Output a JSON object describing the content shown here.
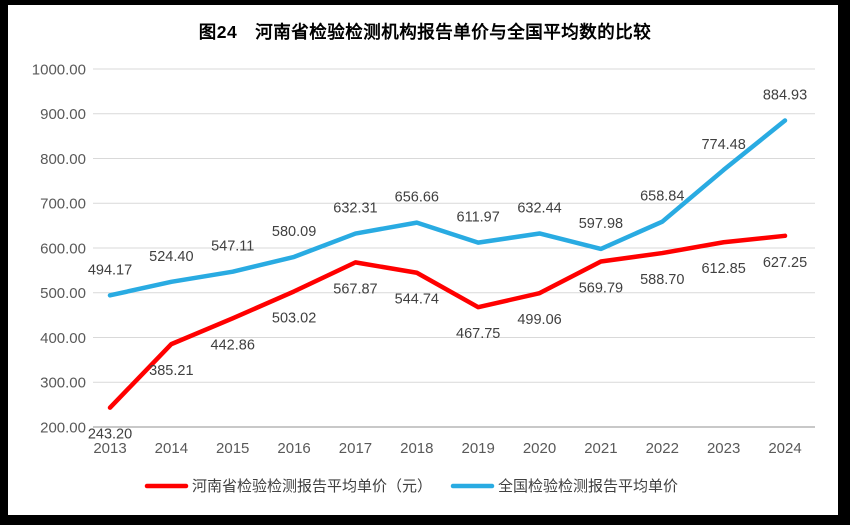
{
  "chart_data": {
    "type": "line",
    "title": "图24　河南省检验检测机构报告单价与全国平均数的比较",
    "categories": [
      "2013",
      "2014",
      "2015",
      "2016",
      "2017",
      "2018",
      "2019",
      "2020",
      "2021",
      "2022",
      "2023",
      "2024"
    ],
    "series": [
      {
        "name": "河南省检验检测报告平均单价（元）",
        "color": "#FF0000",
        "values": [
          243.2,
          385.21,
          442.86,
          503.02,
          567.87,
          544.74,
          467.75,
          499.06,
          569.79,
          588.7,
          612.85,
          627.25
        ],
        "labels": [
          "243.20",
          "385.21",
          "442.86",
          "503.02",
          "567.87",
          "544.74",
          "467.75",
          "499.06",
          "569.79",
          "588.70",
          "612.85",
          "627.25"
        ],
        "label_position": "below"
      },
      {
        "name": "全国检验检测报告平均单价",
        "color": "#29ABE2",
        "values": [
          494.17,
          524.4,
          547.11,
          580.09,
          632.31,
          656.66,
          611.97,
          632.44,
          597.98,
          658.84,
          774.48,
          884.93
        ],
        "labels": [
          "494.17",
          "524.40",
          "547.11",
          "580.09",
          "632.31",
          "656.66",
          "611.97",
          "632.44",
          "597.98",
          "658.84",
          "774.48",
          "884.93"
        ],
        "label_position": "above"
      }
    ],
    "ylim": [
      200,
      1000
    ],
    "ytick_labels": [
      "200.00",
      "300.00",
      "400.00",
      "500.00",
      "600.00",
      "700.00",
      "800.00",
      "900.00",
      "1000.00"
    ],
    "grid": "horizontal",
    "legend_position": "bottom"
  },
  "colors": {
    "henan_line": "#FF0000",
    "national_line": "#29ABE2",
    "gridline": "#D9D9D9",
    "axis_line": "#A6A6A6",
    "tick_text": "#595959",
    "data_label_text": "#404040",
    "title_text": "#000000",
    "frame": "#000000",
    "background": "#FFFFFF"
  }
}
